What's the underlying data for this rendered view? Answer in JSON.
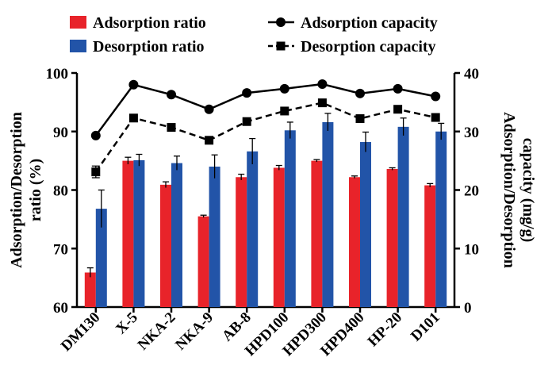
{
  "chart_data": {
    "type": "bar",
    "categories": [
      "DM130",
      "X-5",
      "NKA-2",
      "NKA-9",
      "AB-8",
      "HPD100",
      "HPD300",
      "HPD400",
      "HP-20",
      "D101"
    ],
    "series": [
      {
        "name": "Adsorption ratio",
        "kind": "bar",
        "axis": "left",
        "color": "#e8232a",
        "values": [
          65.9,
          85.0,
          80.9,
          75.5,
          82.2,
          83.8,
          85.0,
          82.2,
          83.6,
          80.8
        ],
        "errors": [
          0.8,
          0.6,
          0.5,
          0.2,
          0.5,
          0.4,
          0.2,
          0.2,
          0.2,
          0.3
        ]
      },
      {
        "name": "Desorption ratio",
        "kind": "bar",
        "axis": "left",
        "color": "#2254a8",
        "values": [
          76.8,
          85.1,
          84.6,
          84.0,
          86.6,
          90.2,
          91.6,
          88.2,
          90.8,
          90.0
        ],
        "errors": [
          3.2,
          1.0,
          1.2,
          2.0,
          2.2,
          1.4,
          1.5,
          1.7,
          1.5,
          1.4
        ]
      },
      {
        "name": "Adsorption capacity",
        "kind": "line",
        "style": "solid",
        "marker": "circle",
        "axis": "right",
        "color": "#000000",
        "values": [
          29.3,
          38.0,
          36.3,
          33.8,
          36.6,
          37.3,
          38.1,
          36.5,
          37.3,
          36.0
        ]
      },
      {
        "name": "Desorption capacity",
        "kind": "line",
        "style": "dashed",
        "marker": "square",
        "axis": "right",
        "color": "#000000",
        "values": [
          23.1,
          32.3,
          30.7,
          28.5,
          31.7,
          33.5,
          34.9,
          32.2,
          33.8,
          32.4
        ],
        "errors": [
          1.0,
          0.5,
          0.4,
          0.4,
          0.4,
          0.4,
          0.4,
          0.4,
          0.4,
          0.4
        ]
      }
    ],
    "y_left": {
      "label_line1": "Adsorption/Desorption",
      "label_line2": "ratio (%)",
      "range": [
        60,
        100
      ],
      "ticks": [
        60,
        70,
        80,
        90,
        100
      ]
    },
    "y_right": {
      "label_line1": "Adsorption/Desorption",
      "label_line2": "capacity (mg/g)",
      "range": [
        0,
        40
      ],
      "ticks": [
        0,
        10,
        20,
        30,
        40
      ]
    },
    "xlabel": "",
    "grid": false,
    "legend_position": "top"
  }
}
